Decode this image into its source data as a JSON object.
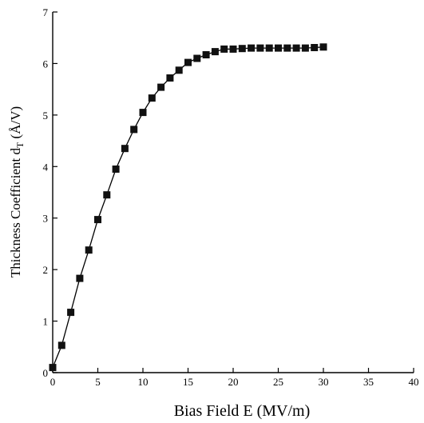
{
  "chart_data": {
    "type": "line",
    "title": "",
    "xlabel": "Bias Field E (MV/m)",
    "ylabel": "Thickness Coefficient d",
    "ylabel_subscript": "T",
    "ylabel_unit": " (Å/V)",
    "xlim": [
      0,
      40
    ],
    "ylim": [
      0,
      7
    ],
    "x_ticks": [
      0,
      5,
      10,
      15,
      20,
      25,
      30,
      35,
      40
    ],
    "y_ticks": [
      0,
      1,
      2,
      3,
      4,
      5,
      6,
      7
    ],
    "grid": false,
    "series": [
      {
        "marker": "square",
        "color": "#111111",
        "x": [
          0,
          1,
          2,
          3,
          4,
          5,
          6,
          7,
          8,
          9,
          10,
          11,
          12,
          13,
          14,
          15,
          16,
          17,
          18,
          19,
          20,
          21,
          22,
          23,
          24,
          25,
          26,
          27,
          28,
          29,
          30
        ],
        "y": [
          0.1,
          0.53,
          1.17,
          1.83,
          2.38,
          2.97,
          3.45,
          3.95,
          4.35,
          4.72,
          5.05,
          5.33,
          5.54,
          5.72,
          5.87,
          6.02,
          6.1,
          6.17,
          6.23,
          6.28,
          6.28,
          6.29,
          6.3,
          6.3,
          6.3,
          6.3,
          6.3,
          6.3,
          6.3,
          6.31,
          6.32
        ]
      }
    ]
  }
}
